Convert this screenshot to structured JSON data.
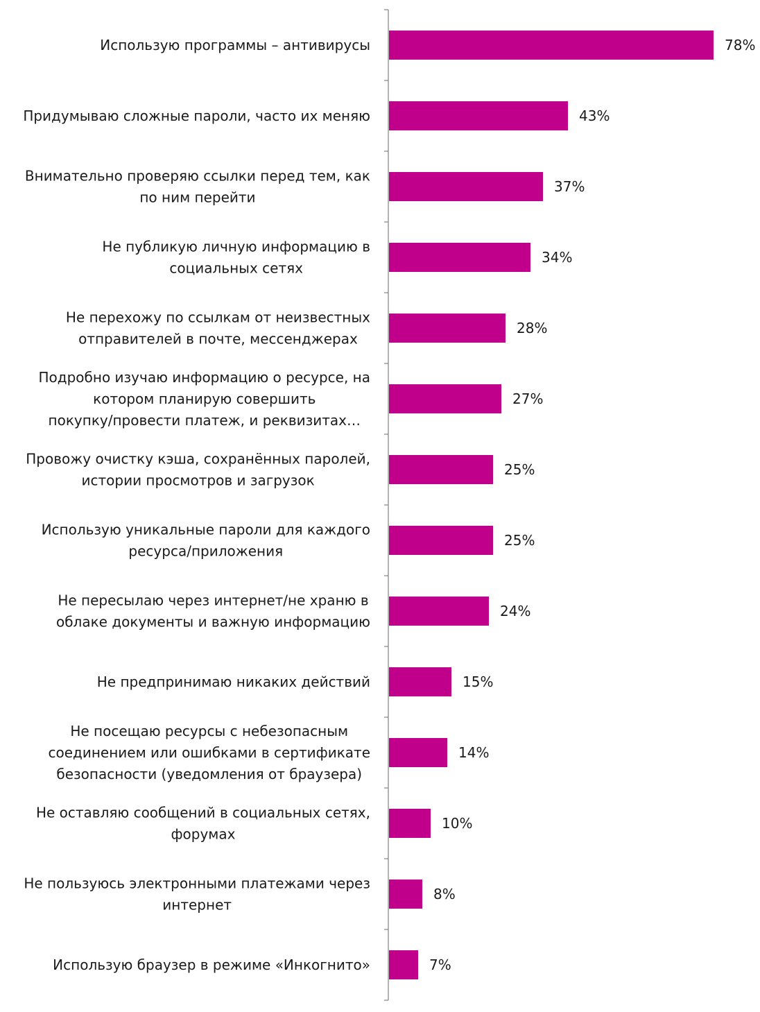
{
  "chart_data": {
    "type": "bar",
    "orientation": "horizontal",
    "title": "",
    "xlabel": "",
    "ylabel": "",
    "xlim": [
      0,
      78
    ],
    "grid": false,
    "legend": "none",
    "bar_color": "#c0008a",
    "categories": [
      [
        "Использую программы – антивирусы"
      ],
      [
        "Придумываю сложные пароли, часто их меняю"
      ],
      [
        "Внимательно проверяю ссылки перед тем, как",
        "по ним перейти"
      ],
      [
        "Не публикую личную информацию в",
        "социальных сетях"
      ],
      [
        "Не перехожу по ссылкам от неизвестных",
        "отправителей в почте, мессенджерах"
      ],
      [
        "Подробно изучаю информацию о ресурсе, на",
        "котором планирую совершить",
        "покупку/провести платеж, и реквизитах…"
      ],
      [
        "Провожу очистку кэша, сохранённых паролей,",
        "истории просмотров и загрузок"
      ],
      [
        "Использую уникальные пароли для каждого",
        "ресурса/приложения"
      ],
      [
        "Не пересылаю через интернет/не храню в",
        "облаке документы и важную информацию"
      ],
      [
        "Не предпринимаю никаких действий"
      ],
      [
        "Не посещаю ресурсы с небезопасным",
        "соединением или ошибками в сертификате",
        "безопасности (уведомления от браузера)"
      ],
      [
        "Не оставляю сообщений в социальных сетях,",
        "форумах"
      ],
      [
        "Не пользуюсь электронными платежами через",
        "интернет"
      ],
      [
        "Использую браузер в режиме «Инкогнито»"
      ]
    ],
    "values": [
      78,
      43,
      37,
      34,
      28,
      27,
      25,
      25,
      24,
      15,
      14,
      10,
      8,
      7
    ],
    "data_labels": [
      "78%",
      "43%",
      "37%",
      "34%",
      "28%",
      "27%",
      "25%",
      "25%",
      "24%",
      "15%",
      "14%",
      "10%",
      "8%",
      "7%"
    ]
  }
}
